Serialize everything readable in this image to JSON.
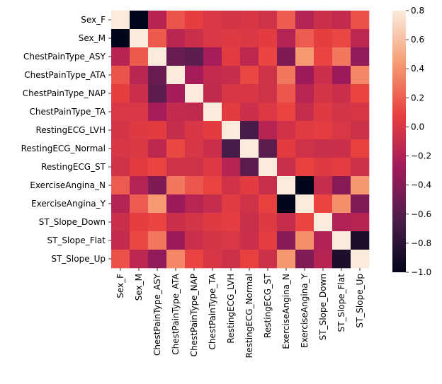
{
  "chart_data": {
    "type": "heatmap",
    "row_labels": [
      "Sex_F",
      "Sex_M",
      "ChestPainType_ASY",
      "ChestPainType_ATA",
      "ChestPainType_NAP",
      "ChestPainType_TA",
      "RestingECG_LVH",
      "RestingECG_Normal",
      "RestingECG_ST",
      "ExerciseAngina_N",
      "ExerciseAngina_Y",
      "ST_Slope_Down",
      "ST_Slope_Flat",
      "ST_Slope_Up"
    ],
    "col_labels": [
      "Sex_F",
      "Sex_M",
      "ChestPainType_ASY",
      "ChestPainType_ATA",
      "ChestPainType_NAP",
      "ChestPainType_TA",
      "RestingECG_LVH",
      "RestingECG_Normal",
      "RestingECG_ST",
      "ExerciseAngina_N",
      "ExerciseAngina_Y",
      "ST_Slope_Down",
      "ST_Slope_Flat",
      "ST_Slope_Up"
    ],
    "values": [
      [
        1.0,
        -1.0,
        -0.18,
        0.16,
        0.07,
        -0.0,
        -0.03,
        -0.01,
        -0.05,
        0.19,
        -0.19,
        -0.07,
        -0.11,
        0.15
      ],
      [
        -1.0,
        1.0,
        0.18,
        -0.16,
        -0.07,
        0.0,
        0.03,
        0.01,
        0.05,
        -0.19,
        0.19,
        0.07,
        0.11,
        -0.15
      ],
      [
        -0.18,
        0.18,
        1.0,
        -0.52,
        -0.58,
        -0.25,
        0.05,
        -0.14,
        0.1,
        -0.43,
        0.43,
        0.1,
        0.3,
        -0.35
      ],
      [
        0.16,
        -0.16,
        -0.52,
        1.0,
        -0.26,
        -0.11,
        -0.1,
        0.11,
        -0.05,
        0.3,
        -0.3,
        -0.07,
        -0.3,
        0.36
      ],
      [
        0.07,
        -0.07,
        -0.58,
        -0.26,
        1.0,
        -0.12,
        -0.01,
        -0.01,
        -0.05,
        0.17,
        -0.17,
        -0.03,
        -0.07,
        0.1
      ],
      [
        -0.0,
        0.0,
        -0.25,
        -0.11,
        -0.12,
        1.0,
        0.05,
        -0.07,
        0.02,
        0.1,
        -0.1,
        0.03,
        -0.03,
        -0.01
      ],
      [
        -0.03,
        0.03,
        0.05,
        -0.1,
        -0.01,
        0.05,
        1.0,
        -0.66,
        -0.18,
        -0.04,
        0.04,
        0.06,
        0.0,
        -0.06
      ],
      [
        -0.01,
        0.01,
        -0.14,
        0.11,
        -0.01,
        -0.07,
        -0.66,
        1.0,
        -0.58,
        0.05,
        -0.05,
        -0.08,
        -0.07,
        0.08
      ],
      [
        -0.05,
        0.05,
        0.1,
        -0.05,
        -0.05,
        0.02,
        -0.18,
        -0.58,
        1.0,
        -0.08,
        0.08,
        0.03,
        0.06,
        -0.06
      ],
      [
        0.19,
        -0.19,
        -0.43,
        0.3,
        0.17,
        0.1,
        -0.04,
        0.05,
        -0.08,
        1.0,
        -1.0,
        -0.1,
        -0.39,
        0.42
      ],
      [
        -0.19,
        0.19,
        0.43,
        -0.3,
        -0.17,
        -0.1,
        0.04,
        -0.05,
        0.08,
        -1.0,
        1.0,
        0.1,
        0.39,
        -0.42
      ],
      [
        -0.07,
        0.07,
        0.1,
        -0.07,
        -0.03,
        0.03,
        0.06,
        -0.08,
        0.03,
        -0.1,
        0.1,
        1.0,
        -0.2,
        -0.18
      ],
      [
        -0.11,
        0.11,
        0.3,
        -0.3,
        -0.07,
        -0.03,
        0.0,
        -0.07,
        0.06,
        -0.39,
        0.39,
        -0.2,
        1.0,
        -0.87
      ],
      [
        0.15,
        -0.15,
        -0.35,
        0.36,
        0.1,
        -0.01,
        -0.06,
        0.08,
        -0.06,
        0.42,
        -0.42,
        -0.18,
        -0.87,
        1.0
      ]
    ],
    "colorbar": {
      "min": -1.0,
      "max": 0.8,
      "ticks": [
        "0.8",
        "0.6",
        "0.4",
        "0.2",
        "0.0",
        "−0.2",
        "−0.4",
        "−0.6",
        "−0.8",
        "−1.0"
      ],
      "tick_values": [
        0.8,
        0.6,
        0.4,
        0.2,
        0.0,
        -0.2,
        -0.4,
        -0.6,
        -0.8,
        -1.0
      ]
    },
    "colormap": "rocket",
    "colormap_stops": [
      "#03051a",
      "#4c1d4b",
      "#a11a5b",
      "#e83f3f",
      "#f69c73",
      "#faebdd"
    ],
    "title": "",
    "xlabel": "",
    "ylabel": ""
  }
}
